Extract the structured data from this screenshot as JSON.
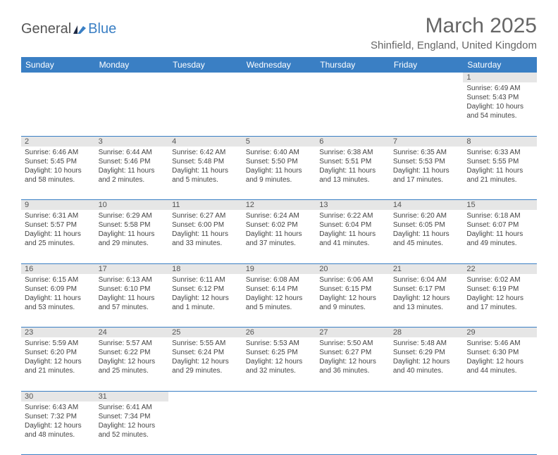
{
  "logo": {
    "general": "General",
    "blue": "Blue"
  },
  "title": "March 2025",
  "location": "Shinfield, England, United Kingdom",
  "header_color": "#3a7fc4",
  "day_bg": "#e6e6e6",
  "days_of_week": [
    "Sunday",
    "Monday",
    "Tuesday",
    "Wednesday",
    "Thursday",
    "Friday",
    "Saturday"
  ],
  "weeks": [
    [
      null,
      null,
      null,
      null,
      null,
      null,
      {
        "n": "1",
        "sr": "Sunrise: 6:49 AM",
        "ss": "Sunset: 5:43 PM",
        "dl": "Daylight: 10 hours and 54 minutes."
      }
    ],
    [
      {
        "n": "2",
        "sr": "Sunrise: 6:46 AM",
        "ss": "Sunset: 5:45 PM",
        "dl": "Daylight: 10 hours and 58 minutes."
      },
      {
        "n": "3",
        "sr": "Sunrise: 6:44 AM",
        "ss": "Sunset: 5:46 PM",
        "dl": "Daylight: 11 hours and 2 minutes."
      },
      {
        "n": "4",
        "sr": "Sunrise: 6:42 AM",
        "ss": "Sunset: 5:48 PM",
        "dl": "Daylight: 11 hours and 5 minutes."
      },
      {
        "n": "5",
        "sr": "Sunrise: 6:40 AM",
        "ss": "Sunset: 5:50 PM",
        "dl": "Daylight: 11 hours and 9 minutes."
      },
      {
        "n": "6",
        "sr": "Sunrise: 6:38 AM",
        "ss": "Sunset: 5:51 PM",
        "dl": "Daylight: 11 hours and 13 minutes."
      },
      {
        "n": "7",
        "sr": "Sunrise: 6:35 AM",
        "ss": "Sunset: 5:53 PM",
        "dl": "Daylight: 11 hours and 17 minutes."
      },
      {
        "n": "8",
        "sr": "Sunrise: 6:33 AM",
        "ss": "Sunset: 5:55 PM",
        "dl": "Daylight: 11 hours and 21 minutes."
      }
    ],
    [
      {
        "n": "9",
        "sr": "Sunrise: 6:31 AM",
        "ss": "Sunset: 5:57 PM",
        "dl": "Daylight: 11 hours and 25 minutes."
      },
      {
        "n": "10",
        "sr": "Sunrise: 6:29 AM",
        "ss": "Sunset: 5:58 PM",
        "dl": "Daylight: 11 hours and 29 minutes."
      },
      {
        "n": "11",
        "sr": "Sunrise: 6:27 AM",
        "ss": "Sunset: 6:00 PM",
        "dl": "Daylight: 11 hours and 33 minutes."
      },
      {
        "n": "12",
        "sr": "Sunrise: 6:24 AM",
        "ss": "Sunset: 6:02 PM",
        "dl": "Daylight: 11 hours and 37 minutes."
      },
      {
        "n": "13",
        "sr": "Sunrise: 6:22 AM",
        "ss": "Sunset: 6:04 PM",
        "dl": "Daylight: 11 hours and 41 minutes."
      },
      {
        "n": "14",
        "sr": "Sunrise: 6:20 AM",
        "ss": "Sunset: 6:05 PM",
        "dl": "Daylight: 11 hours and 45 minutes."
      },
      {
        "n": "15",
        "sr": "Sunrise: 6:18 AM",
        "ss": "Sunset: 6:07 PM",
        "dl": "Daylight: 11 hours and 49 minutes."
      }
    ],
    [
      {
        "n": "16",
        "sr": "Sunrise: 6:15 AM",
        "ss": "Sunset: 6:09 PM",
        "dl": "Daylight: 11 hours and 53 minutes."
      },
      {
        "n": "17",
        "sr": "Sunrise: 6:13 AM",
        "ss": "Sunset: 6:10 PM",
        "dl": "Daylight: 11 hours and 57 minutes."
      },
      {
        "n": "18",
        "sr": "Sunrise: 6:11 AM",
        "ss": "Sunset: 6:12 PM",
        "dl": "Daylight: 12 hours and 1 minute."
      },
      {
        "n": "19",
        "sr": "Sunrise: 6:08 AM",
        "ss": "Sunset: 6:14 PM",
        "dl": "Daylight: 12 hours and 5 minutes."
      },
      {
        "n": "20",
        "sr": "Sunrise: 6:06 AM",
        "ss": "Sunset: 6:15 PM",
        "dl": "Daylight: 12 hours and 9 minutes."
      },
      {
        "n": "21",
        "sr": "Sunrise: 6:04 AM",
        "ss": "Sunset: 6:17 PM",
        "dl": "Daylight: 12 hours and 13 minutes."
      },
      {
        "n": "22",
        "sr": "Sunrise: 6:02 AM",
        "ss": "Sunset: 6:19 PM",
        "dl": "Daylight: 12 hours and 17 minutes."
      }
    ],
    [
      {
        "n": "23",
        "sr": "Sunrise: 5:59 AM",
        "ss": "Sunset: 6:20 PM",
        "dl": "Daylight: 12 hours and 21 minutes."
      },
      {
        "n": "24",
        "sr": "Sunrise: 5:57 AM",
        "ss": "Sunset: 6:22 PM",
        "dl": "Daylight: 12 hours and 25 minutes."
      },
      {
        "n": "25",
        "sr": "Sunrise: 5:55 AM",
        "ss": "Sunset: 6:24 PM",
        "dl": "Daylight: 12 hours and 29 minutes."
      },
      {
        "n": "26",
        "sr": "Sunrise: 5:53 AM",
        "ss": "Sunset: 6:25 PM",
        "dl": "Daylight: 12 hours and 32 minutes."
      },
      {
        "n": "27",
        "sr": "Sunrise: 5:50 AM",
        "ss": "Sunset: 6:27 PM",
        "dl": "Daylight: 12 hours and 36 minutes."
      },
      {
        "n": "28",
        "sr": "Sunrise: 5:48 AM",
        "ss": "Sunset: 6:29 PM",
        "dl": "Daylight: 12 hours and 40 minutes."
      },
      {
        "n": "29",
        "sr": "Sunrise: 5:46 AM",
        "ss": "Sunset: 6:30 PM",
        "dl": "Daylight: 12 hours and 44 minutes."
      }
    ],
    [
      {
        "n": "30",
        "sr": "Sunrise: 6:43 AM",
        "ss": "Sunset: 7:32 PM",
        "dl": "Daylight: 12 hours and 48 minutes."
      },
      {
        "n": "31",
        "sr": "Sunrise: 6:41 AM",
        "ss": "Sunset: 7:34 PM",
        "dl": "Daylight: 12 hours and 52 minutes."
      },
      null,
      null,
      null,
      null,
      null
    ]
  ]
}
